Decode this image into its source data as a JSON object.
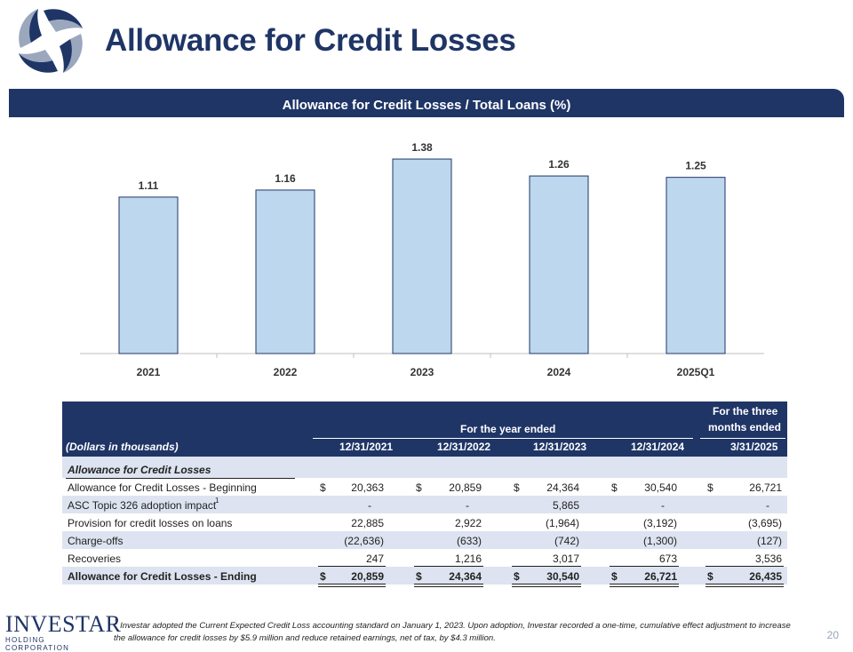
{
  "header": {
    "title": "Allowance for Credit Losses"
  },
  "banner": {
    "title": "Allowance for Credit Losses / Total Loans (%)"
  },
  "chart_data": {
    "type": "bar",
    "title": "Allowance for Credit Losses / Total Loans (%)",
    "categories": [
      "2021",
      "2022",
      "2023",
      "2024",
      "2025Q1"
    ],
    "values": [
      1.11,
      1.16,
      1.38,
      1.26,
      1.25
    ],
    "data_labels": [
      "1.11",
      "1.16",
      "1.38",
      "1.26",
      "1.25"
    ],
    "ylim": [
      0,
      1.5
    ],
    "grid": false,
    "bar_color": "#bdd7ee",
    "bar_edge_color": "#1f3566"
  },
  "table": {
    "header_top": "For the three",
    "header_group_year": "For the year ended",
    "header_group_months": "months ended",
    "units_label": "(Dollars in thousands)",
    "columns": [
      "12/31/2021",
      "12/31/2022",
      "12/31/2023",
      "12/31/2024",
      "3/31/2025"
    ],
    "section_label": "Allowance for Credit Losses",
    "rows": [
      {
        "label": "Allowance for Credit Losses - Beginning",
        "dollar": "$",
        "values": [
          "20,363",
          "20,859",
          "24,364",
          "30,540",
          "26,721"
        ]
      },
      {
        "label": "ASC Topic 326 adoption impact",
        "sup": "1",
        "values": [
          "-",
          "-",
          "5,865",
          "-",
          "-"
        ]
      },
      {
        "label": "Provision for credit losses on loans",
        "values": [
          "22,885",
          "2,922",
          "(1,964)",
          "(3,192)",
          "(3,695)"
        ]
      },
      {
        "label": "Charge-offs",
        "values": [
          "(22,636)",
          "(633)",
          "(742)",
          "(1,300)",
          "(127)"
        ]
      },
      {
        "label": "Recoveries",
        "values": [
          "247",
          "1,216",
          "3,017",
          "673",
          "3,536"
        ]
      },
      {
        "label": "Allowance for Credit Losses - Ending",
        "dollar": "$",
        "values": [
          "20,859",
          "24,364",
          "30,540",
          "26,721",
          "26,435"
        ]
      }
    ]
  },
  "footer": {
    "logo_name": "INVESTAR",
    "logo_sub": "HOLDING CORPORATION",
    "footnote_mark": "1",
    "footnote": "Investar adopted the Current Expected Credit Loss accounting standard on January 1, 2023. Upon adoption, Investar recorded a one-time, cumulative effect adjustment to increase the allowance for credit losses by $5.9 million and reduce retained earnings, net of tax, by $4.3 million.",
    "page_number": "20"
  }
}
